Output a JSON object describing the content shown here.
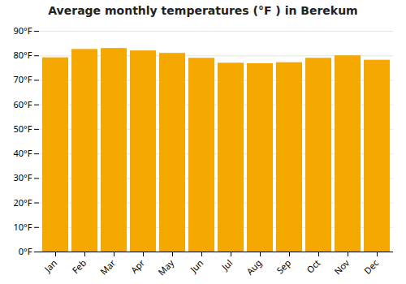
{
  "chart_data": {
    "type": "bar",
    "title": "Average monthly temperatures (°F ) in Berekum",
    "categories": [
      "Jan",
      "Feb",
      "Mar",
      "Apr",
      "May",
      "Jun",
      "Jul",
      "Aug",
      "Sep",
      "Oct",
      "Nov",
      "Dec"
    ],
    "values": [
      79.2,
      82.6,
      83.0,
      82.0,
      81.0,
      79.0,
      77.0,
      76.8,
      77.2,
      79.0,
      80.0,
      78.2
    ],
    "color": "#F5A800",
    "ylim": [
      0,
      90
    ],
    "yticks": [
      {
        "value": 0,
        "label": "0°F"
      },
      {
        "value": 10,
        "label": "10°F"
      },
      {
        "value": 20,
        "label": "20°F"
      },
      {
        "value": 30,
        "label": "30°F"
      },
      {
        "value": 40,
        "label": "40°F"
      },
      {
        "value": 50,
        "label": "50°F"
      },
      {
        "value": 60,
        "label": "60°F"
      },
      {
        "value": 70,
        "label": "70°F"
      },
      {
        "value": 80,
        "label": "80°F"
      },
      {
        "value": 90,
        "label": "90°F"
      }
    ],
    "grid": true
  }
}
